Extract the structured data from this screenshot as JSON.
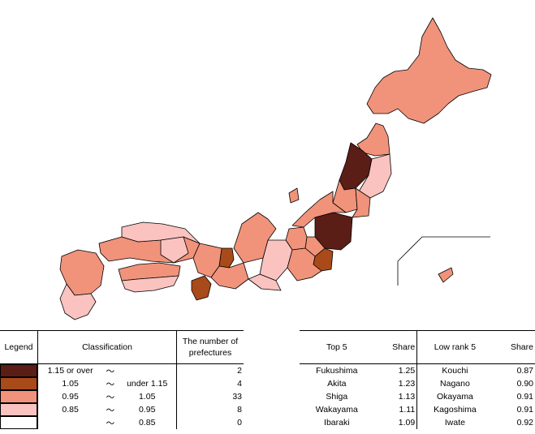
{
  "colors": {
    "c1": "#5a1e17",
    "c2": "#a84a19",
    "c3": "#f0937a",
    "c4": "#fac3c0",
    "c5": "#ffffff",
    "border": "#000000"
  },
  "legend": {
    "header_legend": "Legend",
    "header_classification": "Classification",
    "header_count": "The number of prefectures",
    "tilde": "〜",
    "rows": [
      {
        "color_key": "c1",
        "low": "1.15 or over",
        "high": "",
        "count": "2"
      },
      {
        "color_key": "c2",
        "low": "1.05",
        "high": "under 1.15",
        "count": "4"
      },
      {
        "color_key": "c3",
        "low": "0.95",
        "high": "1.05",
        "count": "33"
      },
      {
        "color_key": "c4",
        "low": "0.85",
        "high": "0.95",
        "count": "8"
      },
      {
        "color_key": "c5",
        "low": "",
        "high": "0.85",
        "count": "0"
      }
    ]
  },
  "ranking": {
    "header_top": "Top 5",
    "header_share": "Share",
    "header_low": "Low rank 5",
    "header_share2": "Share",
    "rows": [
      {
        "top_name": "Fukushima",
        "top_share": "1.25",
        "low_name": "Kouchi",
        "low_share": "0.87"
      },
      {
        "top_name": "Akita",
        "top_share": "1.23",
        "low_name": "Nagano",
        "low_share": "0.90"
      },
      {
        "top_name": "Shiga",
        "top_share": "1.13",
        "low_name": "Okayama",
        "low_share": "0.91"
      },
      {
        "top_name": "Wakayama",
        "top_share": "1.11",
        "low_name": "Kagoshima",
        "low_share": "0.91"
      },
      {
        "top_name": "Ibaraki",
        "top_share": "1.09",
        "low_name": "Iwate",
        "low_share": "0.92"
      }
    ]
  },
  "regions": [
    {
      "name": "hokkaido",
      "color_key": "c3"
    },
    {
      "name": "aomori",
      "color_key": "c3"
    },
    {
      "name": "akita",
      "color_key": "c1"
    },
    {
      "name": "iwate",
      "color_key": "c4"
    },
    {
      "name": "yamagata",
      "color_key": "c3"
    },
    {
      "name": "miyagi",
      "color_key": "c3"
    },
    {
      "name": "fukushima",
      "color_key": "c1"
    },
    {
      "name": "niigata",
      "color_key": "c3"
    },
    {
      "name": "ibaraki",
      "color_key": "c2"
    },
    {
      "name": "tochigi",
      "color_key": "c3"
    },
    {
      "name": "gunma",
      "color_key": "c3"
    },
    {
      "name": "nagano",
      "color_key": "c4"
    },
    {
      "name": "kanto",
      "color_key": "c3"
    },
    {
      "name": "chubu",
      "color_key": "c3"
    },
    {
      "name": "shiga",
      "color_key": "c2"
    },
    {
      "name": "kinki",
      "color_key": "c3"
    },
    {
      "name": "wakayama",
      "color_key": "c2"
    },
    {
      "name": "mie",
      "color_key": "c3"
    },
    {
      "name": "shizuoka",
      "color_key": "c4"
    },
    {
      "name": "chugoku-west",
      "color_key": "c3"
    },
    {
      "name": "chugoku-north",
      "color_key": "c4"
    },
    {
      "name": "okayama",
      "color_key": "c4"
    },
    {
      "name": "shikoku-north",
      "color_key": "c3"
    },
    {
      "name": "kouchi",
      "color_key": "c4"
    },
    {
      "name": "kyushu-north",
      "color_key": "c3"
    },
    {
      "name": "kyushu-south",
      "color_key": "c4"
    },
    {
      "name": "sado",
      "color_key": "c3"
    },
    {
      "name": "okinawa",
      "color_key": "c3"
    }
  ]
}
